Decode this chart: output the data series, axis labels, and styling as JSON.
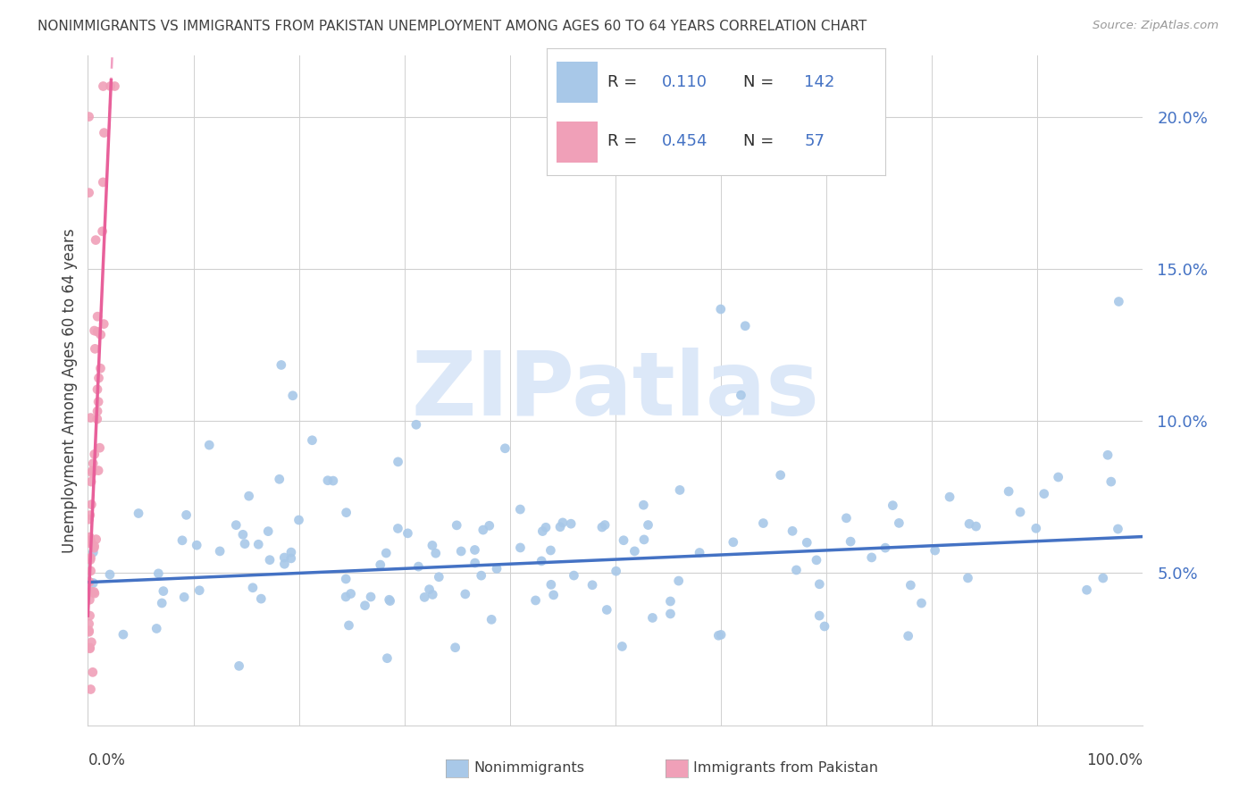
{
  "title": "NONIMMIGRANTS VS IMMIGRANTS FROM PAKISTAN UNEMPLOYMENT AMONG AGES 60 TO 64 YEARS CORRELATION CHART",
  "source": "Source: ZipAtlas.com",
  "ylabel": "Unemployment Among Ages 60 to 64 years",
  "legend_nonimm_R": "0.110",
  "legend_nonimm_N": "142",
  "legend_imm_R": "0.454",
  "legend_imm_N": "57",
  "nonimm_color": "#a8c8e8",
  "imm_color": "#f0a0b8",
  "nonimm_line_color": "#4472c4",
  "imm_line_color": "#e8609a",
  "watermark_color": "#dce8f8",
  "background_color": "#ffffff",
  "grid_color": "#d0d0d0",
  "title_color": "#404040",
  "axis_label_color": "#404040",
  "legend_value_color": "#4472c4",
  "xtick_color": "#404040",
  "xlim": [
    0.0,
    1.0
  ],
  "ylim": [
    0.0,
    0.22
  ]
}
